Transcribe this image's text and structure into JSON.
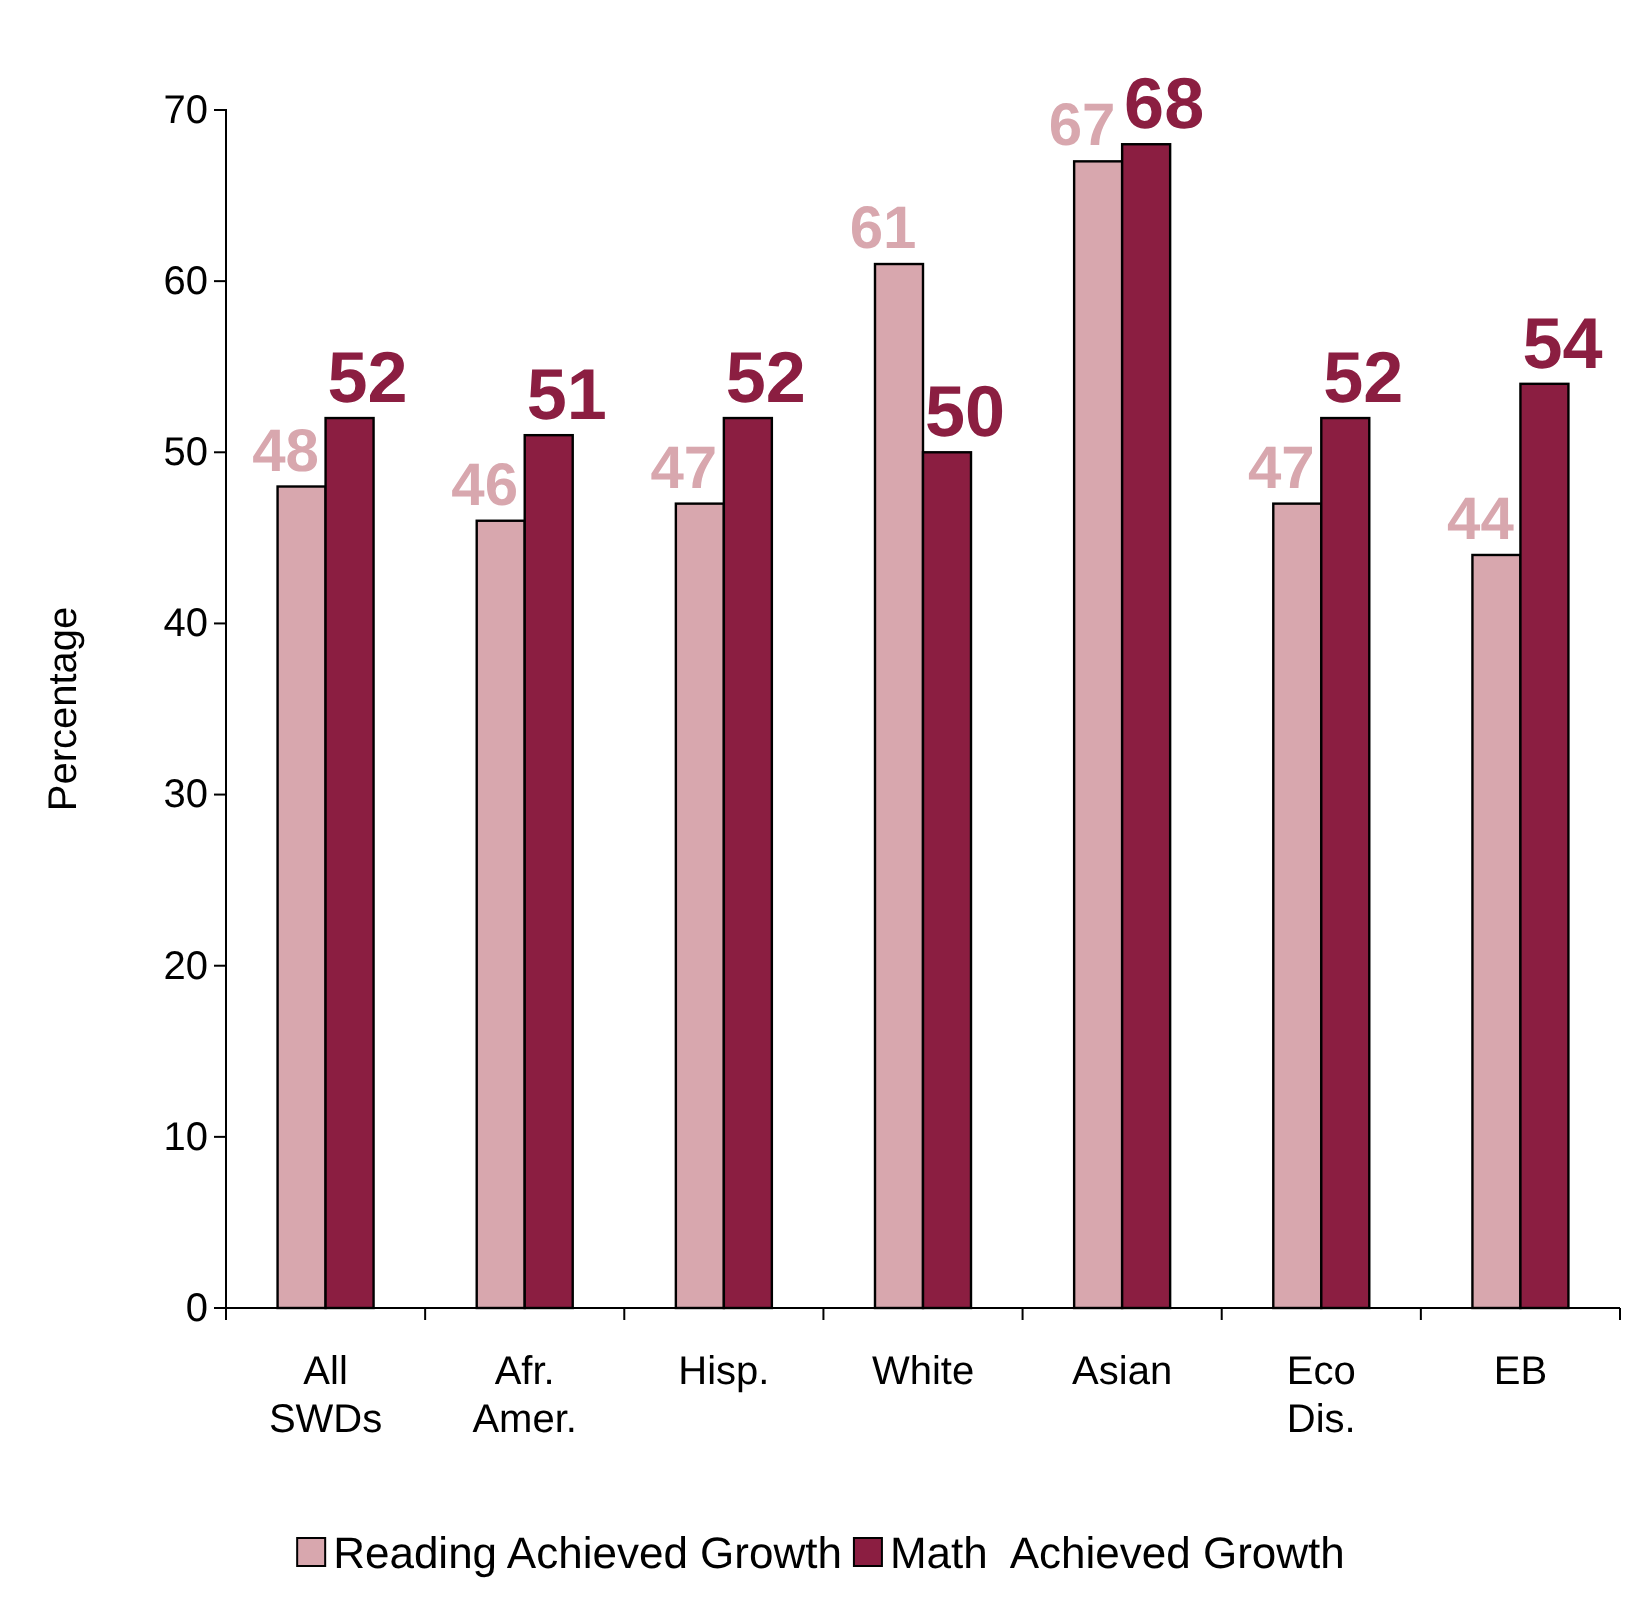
{
  "chart_data": {
    "type": "bar",
    "ylabel": "Percentage",
    "categories": [
      "All SWDs",
      "Afr. Amer.",
      "Hisp.",
      "White",
      "Asian",
      "Eco Dis.",
      "EB"
    ],
    "series": [
      {
        "name": "Reading Achieved Growth",
        "color": "#d8a7ae",
        "values": [
          48,
          46,
          47,
          61,
          67,
          47,
          44
        ]
      },
      {
        "name": "Math  Achieved Growth",
        "color": "#8b1e41",
        "values": [
          52,
          51,
          52,
          50,
          68,
          52,
          54
        ]
      }
    ],
    "ylim": [
      0,
      70
    ],
    "yticks": [
      0,
      10,
      20,
      30,
      40,
      50,
      60,
      70
    ],
    "grid": false,
    "legend": "bottom",
    "data_labels": true
  }
}
